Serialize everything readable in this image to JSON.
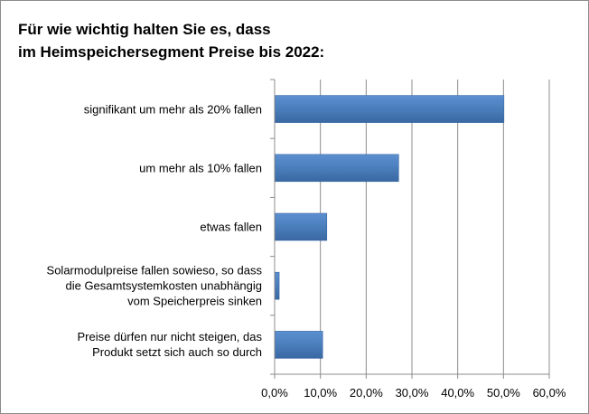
{
  "chart_data": {
    "type": "bar",
    "orientation": "horizontal",
    "title_lines": [
      "Für wie wichtig halten Sie es, dass",
      "im Heimspeichersegment Preise bis 2022:"
    ],
    "categories": [
      [
        "signifikant um mehr als 20% fallen"
      ],
      [
        "um mehr als 10% fallen"
      ],
      [
        "etwas fallen"
      ],
      [
        "Solarmodulpreise fallen sowieso, so dass",
        "die Gesamtsystemkosten unabhängig",
        "vom Speicherpreis sinken"
      ],
      [
        "Preise dürfen nur nicht steigen, das",
        "Produkt setzt sich auch so durch"
      ]
    ],
    "values": [
      50.0,
      27.0,
      11.3,
      0.9,
      10.4
    ],
    "xlim": [
      0,
      60
    ],
    "xticks": [
      "0,0%",
      "10,0%",
      "20,0%",
      "30,0%",
      "40,0%",
      "50,0%",
      "60,0%"
    ],
    "grid": true,
    "legend": "none",
    "bar_color": "#4a7ebb"
  }
}
